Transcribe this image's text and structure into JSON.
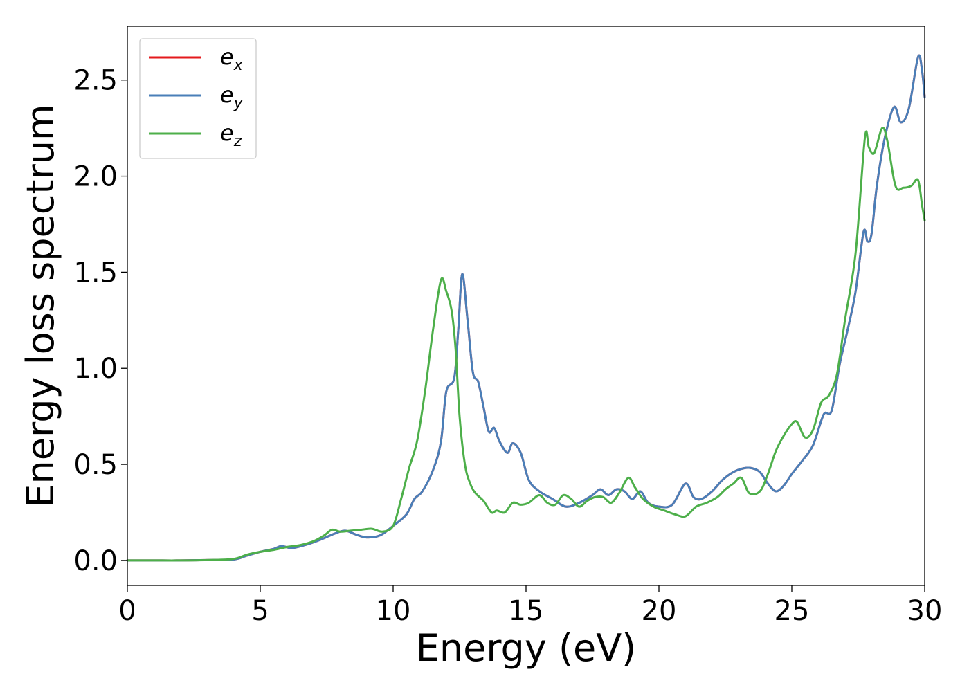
{
  "chart_data": {
    "type": "line",
    "title": "",
    "xlabel": "Energy (eV)",
    "ylabel": "Energy loss spectrum",
    "xlim": [
      0,
      30
    ],
    "ylim": [
      -0.13,
      2.78
    ],
    "xticks": [
      0,
      5,
      10,
      15,
      20,
      25,
      30
    ],
    "xtick_labels": [
      "0",
      "5",
      "10",
      "15",
      "20",
      "25",
      "30"
    ],
    "yticks": [
      0.0,
      0.5,
      1.0,
      1.5,
      2.0,
      2.5
    ],
    "ytick_labels": [
      "0.0",
      "0.5",
      "1.0",
      "1.5",
      "2.0",
      "2.5"
    ],
    "grid": false,
    "legend_position": "top-left",
    "series": [
      {
        "name": "e_x",
        "legend_base": "e",
        "legend_sub": "x",
        "color": "#e41a1c",
        "x": [
          0,
          1,
          2,
          3,
          4,
          4.5,
          5,
          5.5,
          5.8,
          6.2,
          6.8,
          7.3,
          7.8,
          8.2,
          8.6,
          9.0,
          9.5,
          10.0,
          10.5,
          10.8,
          11.1,
          11.5,
          11.8,
          12.0,
          12.3,
          12.45,
          12.6,
          12.8,
          13.0,
          13.2,
          13.4,
          13.6,
          13.8,
          14.0,
          14.3,
          14.5,
          14.8,
          15.1,
          15.5,
          16.0,
          16.5,
          17.0,
          17.5,
          17.8,
          18.1,
          18.4,
          18.7,
          19.0,
          19.3,
          19.6,
          20.0,
          20.5,
          21.0,
          21.3,
          21.6,
          22.0,
          22.4,
          22.8,
          23.2,
          23.5,
          23.8,
          24.1,
          24.4,
          24.7,
          25.0,
          25.4,
          25.8,
          26.2,
          26.5,
          26.8,
          27.1,
          27.4,
          27.7,
          27.85,
          28.0,
          28.2,
          28.5,
          28.85,
          29.1,
          29.4,
          29.75,
          29.9,
          30.0
        ],
        "y": [
          0.0,
          0.0,
          0.0,
          0.002,
          0.005,
          0.025,
          0.045,
          0.06,
          0.075,
          0.065,
          0.085,
          0.11,
          0.14,
          0.155,
          0.135,
          0.12,
          0.13,
          0.18,
          0.24,
          0.32,
          0.36,
          0.47,
          0.62,
          0.88,
          0.95,
          1.2,
          1.49,
          1.25,
          0.98,
          0.93,
          0.8,
          0.67,
          0.69,
          0.62,
          0.56,
          0.61,
          0.56,
          0.42,
          0.36,
          0.32,
          0.28,
          0.3,
          0.34,
          0.37,
          0.34,
          0.37,
          0.36,
          0.32,
          0.36,
          0.3,
          0.28,
          0.29,
          0.4,
          0.33,
          0.32,
          0.36,
          0.42,
          0.46,
          0.48,
          0.48,
          0.46,
          0.4,
          0.36,
          0.39,
          0.45,
          0.52,
          0.6,
          0.76,
          0.78,
          1.02,
          1.2,
          1.4,
          1.71,
          1.66,
          1.7,
          1.95,
          2.2,
          2.36,
          2.28,
          2.35,
          2.62,
          2.55,
          2.41
        ]
      },
      {
        "name": "e_y",
        "legend_base": "e",
        "legend_sub": "y",
        "color": "#4a7fb8",
        "x": [
          0,
          1,
          2,
          3,
          4,
          4.5,
          5,
          5.5,
          5.8,
          6.2,
          6.8,
          7.3,
          7.8,
          8.2,
          8.6,
          9.0,
          9.5,
          10.0,
          10.5,
          10.8,
          11.1,
          11.5,
          11.8,
          12.0,
          12.3,
          12.45,
          12.6,
          12.8,
          13.0,
          13.2,
          13.4,
          13.6,
          13.8,
          14.0,
          14.3,
          14.5,
          14.8,
          15.1,
          15.5,
          16.0,
          16.5,
          17.0,
          17.5,
          17.8,
          18.1,
          18.4,
          18.7,
          19.0,
          19.3,
          19.6,
          20.0,
          20.5,
          21.0,
          21.3,
          21.6,
          22.0,
          22.4,
          22.8,
          23.2,
          23.5,
          23.8,
          24.1,
          24.4,
          24.7,
          25.0,
          25.4,
          25.8,
          26.2,
          26.5,
          26.8,
          27.1,
          27.4,
          27.7,
          27.85,
          28.0,
          28.2,
          28.5,
          28.85,
          29.1,
          29.4,
          29.75,
          29.9,
          30.0
        ],
        "y": [
          0.0,
          0.0,
          0.0,
          0.002,
          0.005,
          0.025,
          0.045,
          0.06,
          0.075,
          0.065,
          0.085,
          0.11,
          0.14,
          0.155,
          0.135,
          0.12,
          0.13,
          0.18,
          0.24,
          0.32,
          0.36,
          0.47,
          0.62,
          0.88,
          0.95,
          1.2,
          1.49,
          1.25,
          0.98,
          0.93,
          0.8,
          0.67,
          0.69,
          0.62,
          0.56,
          0.61,
          0.56,
          0.42,
          0.36,
          0.32,
          0.28,
          0.3,
          0.34,
          0.37,
          0.34,
          0.37,
          0.36,
          0.32,
          0.36,
          0.3,
          0.28,
          0.29,
          0.4,
          0.33,
          0.32,
          0.36,
          0.42,
          0.46,
          0.48,
          0.48,
          0.46,
          0.4,
          0.36,
          0.39,
          0.45,
          0.52,
          0.6,
          0.76,
          0.78,
          1.02,
          1.2,
          1.4,
          1.71,
          1.66,
          1.7,
          1.95,
          2.2,
          2.36,
          2.28,
          2.35,
          2.62,
          2.55,
          2.41
        ]
      },
      {
        "name": "e_z",
        "legend_base": "e",
        "legend_sub": "z",
        "color": "#4daf4a",
        "x": [
          0,
          1,
          2,
          3,
          4,
          4.5,
          5,
          5.5,
          6.0,
          6.5,
          7.0,
          7.4,
          7.7,
          8.0,
          8.4,
          8.8,
          9.2,
          9.6,
          10.0,
          10.3,
          10.6,
          10.9,
          11.2,
          11.5,
          11.8,
          12.0,
          12.2,
          12.35,
          12.5,
          12.7,
          12.9,
          13.1,
          13.4,
          13.7,
          13.9,
          14.2,
          14.5,
          14.8,
          15.1,
          15.5,
          15.8,
          16.1,
          16.4,
          16.7,
          17.0,
          17.3,
          17.6,
          17.9,
          18.2,
          18.5,
          18.85,
          19.1,
          19.4,
          19.8,
          20.2,
          20.6,
          21.0,
          21.4,
          21.8,
          22.2,
          22.5,
          22.8,
          23.1,
          23.4,
          23.8,
          24.1,
          24.4,
          24.7,
          25.0,
          25.2,
          25.5,
          25.8,
          26.1,
          26.4,
          26.7,
          27.0,
          27.4,
          27.75,
          27.9,
          28.1,
          28.4,
          28.6,
          28.9,
          29.2,
          29.5,
          29.75,
          29.9,
          30.0
        ],
        "y": [
          0.0,
          0.0,
          0.0,
          0.002,
          0.008,
          0.03,
          0.045,
          0.055,
          0.07,
          0.08,
          0.1,
          0.13,
          0.16,
          0.15,
          0.155,
          0.16,
          0.165,
          0.15,
          0.18,
          0.32,
          0.48,
          0.62,
          0.88,
          1.2,
          1.46,
          1.4,
          1.3,
          1.1,
          0.75,
          0.5,
          0.4,
          0.35,
          0.31,
          0.25,
          0.26,
          0.25,
          0.3,
          0.29,
          0.3,
          0.34,
          0.3,
          0.29,
          0.34,
          0.32,
          0.28,
          0.31,
          0.33,
          0.33,
          0.3,
          0.35,
          0.43,
          0.38,
          0.32,
          0.28,
          0.26,
          0.24,
          0.23,
          0.28,
          0.3,
          0.33,
          0.37,
          0.4,
          0.43,
          0.35,
          0.36,
          0.45,
          0.57,
          0.65,
          0.71,
          0.72,
          0.64,
          0.68,
          0.82,
          0.86,
          0.97,
          1.25,
          1.6,
          2.2,
          2.15,
          2.12,
          2.25,
          2.18,
          1.95,
          1.94,
          1.95,
          1.98,
          1.85,
          1.77
        ]
      }
    ]
  }
}
